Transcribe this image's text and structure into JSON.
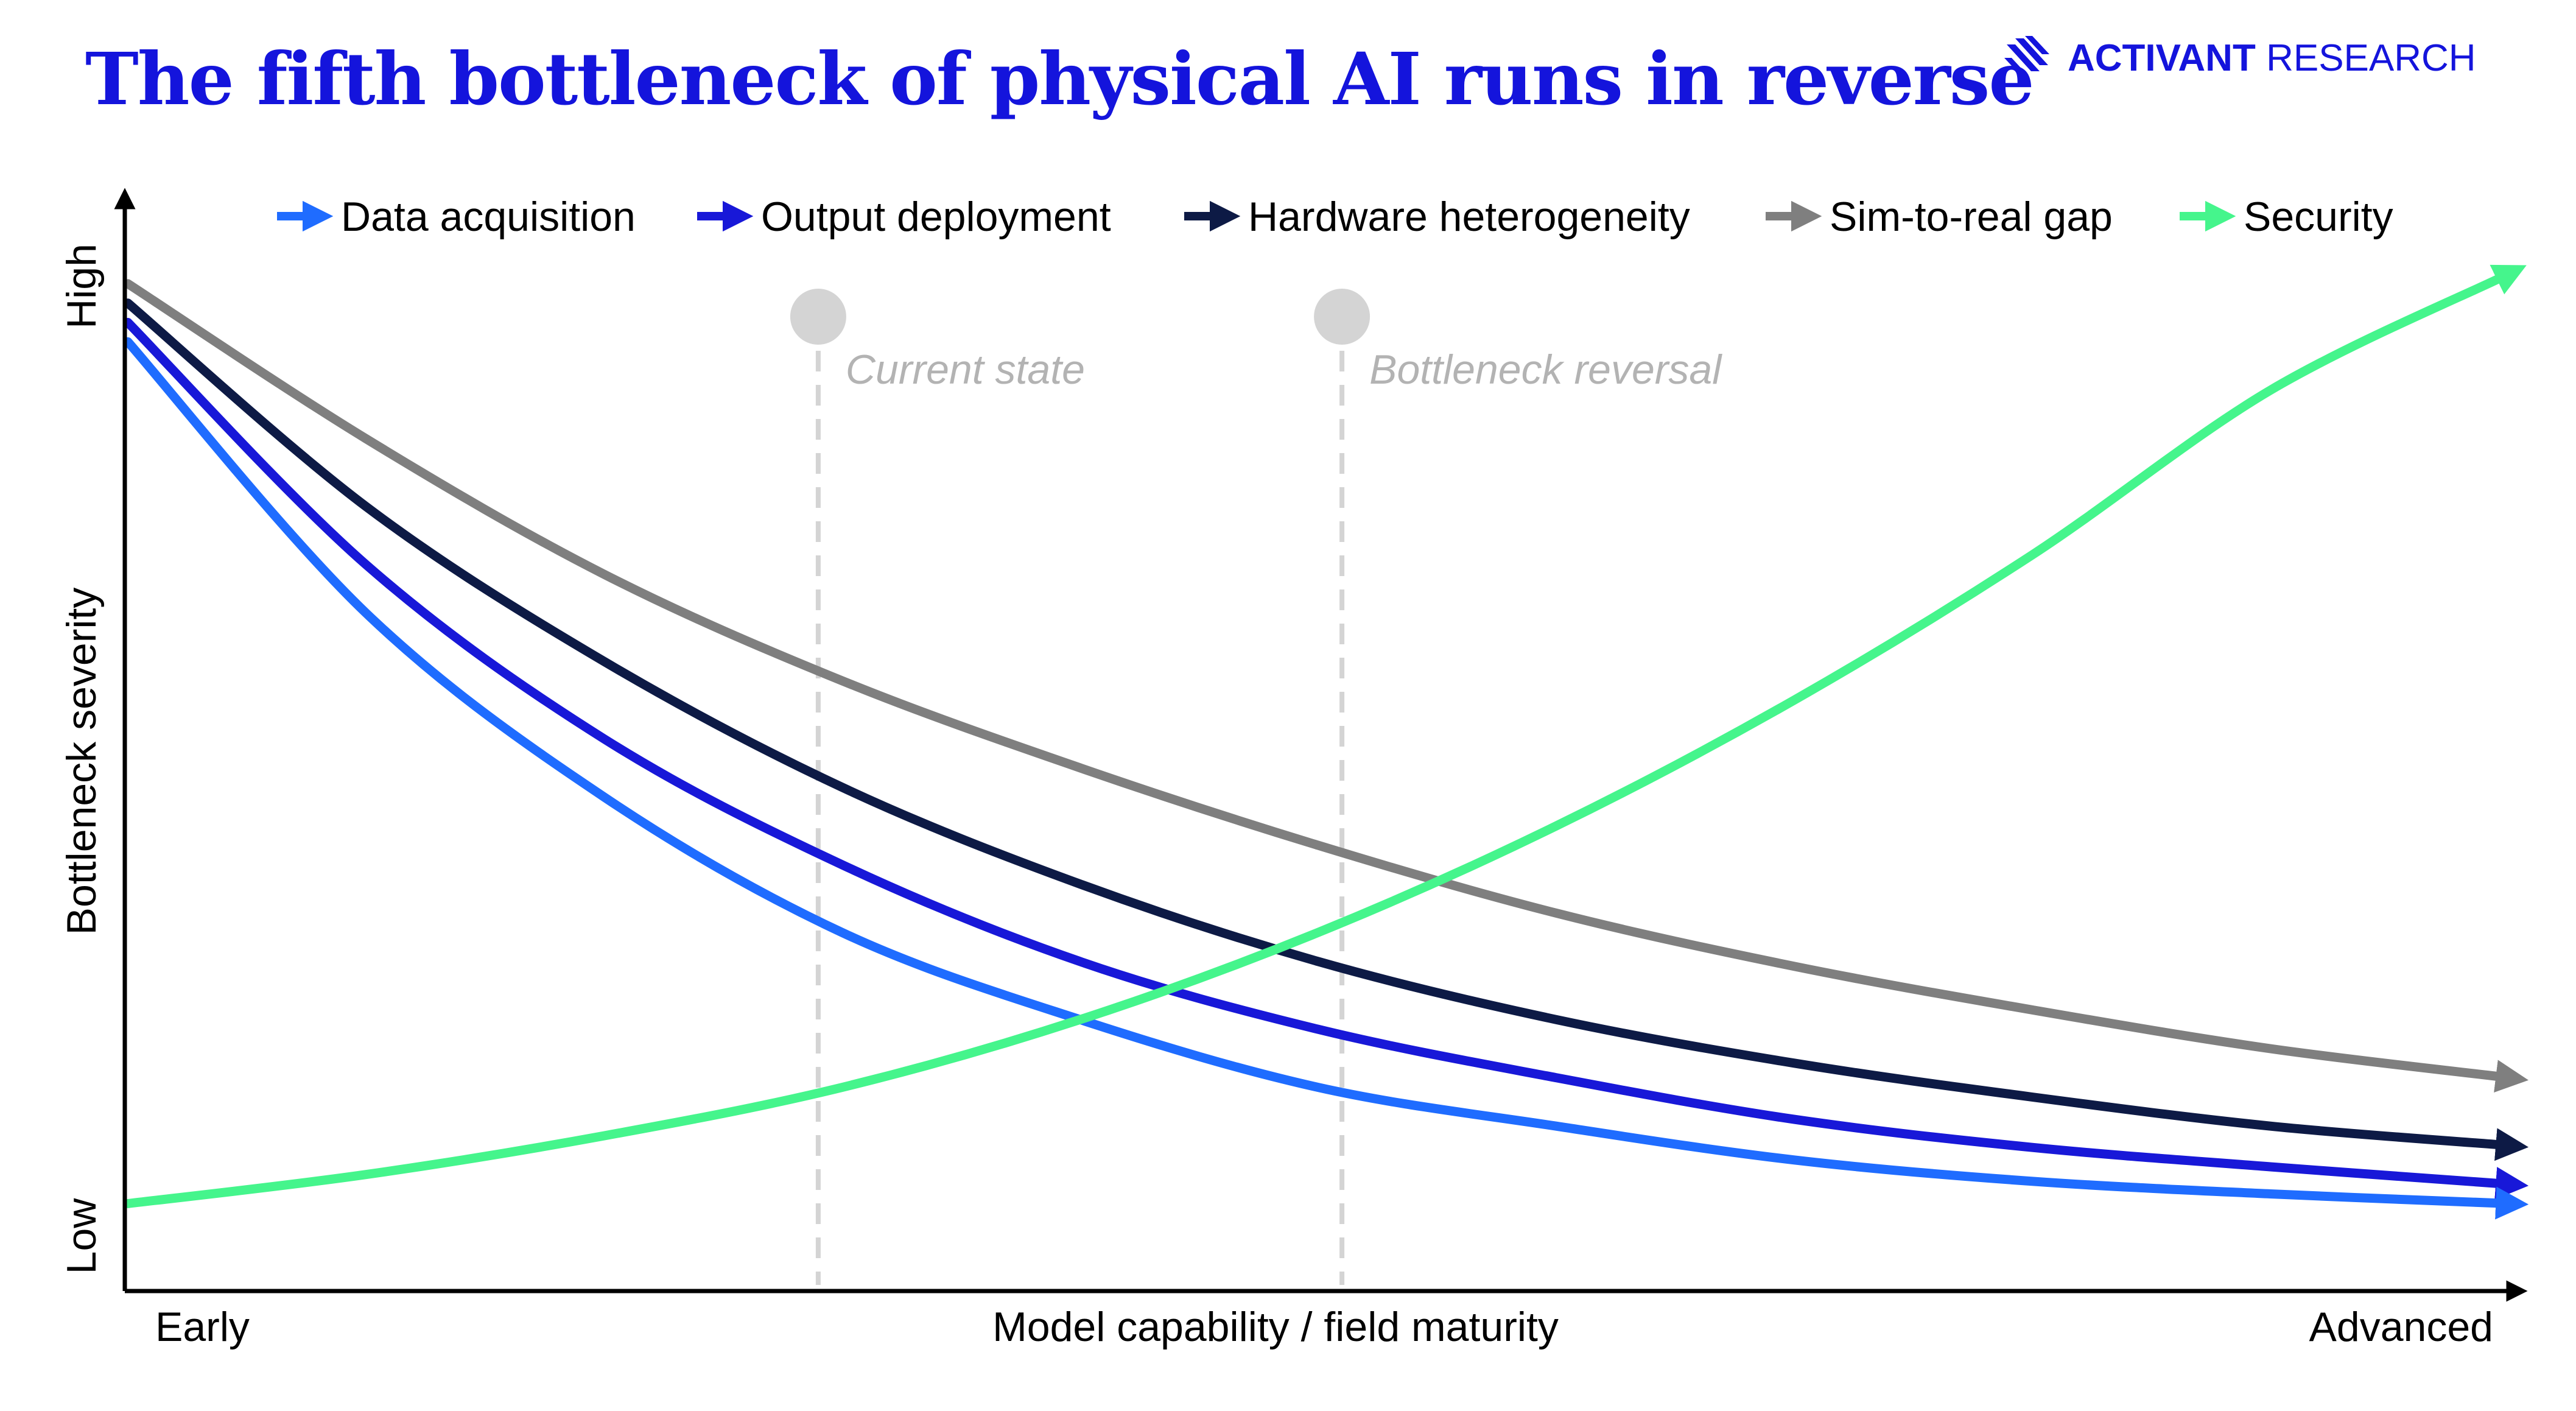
{
  "header": {
    "title": "The fifth bottleneck of physical AI runs in reverse",
    "brand_bold": "ACTIVANT",
    "brand_light": "RESEARCH"
  },
  "colors": {
    "brand": "#1414dc",
    "axis": "#000000",
    "marker": "#d4d4d4",
    "marker_text": "#b3b3b3"
  },
  "chart_data": {
    "type": "line",
    "title": "The fifth bottleneck of physical AI runs in reverse",
    "xlabel": "Model capability / field maturity",
    "ylabel": "Bottleneck severity",
    "x_tick_labels": {
      "start": "Early",
      "end": "Advanced"
    },
    "y_tick_labels": {
      "low": "Low",
      "high": "High"
    },
    "xlim": [
      0,
      100
    ],
    "ylim": [
      0,
      100
    ],
    "grid": false,
    "legend_position": "top",
    "x": [
      0,
      10,
      20,
      30,
      40,
      50,
      60,
      70,
      80,
      90,
      100
    ],
    "series": [
      {
        "name": "Data acquisition",
        "color": "#1f6cff",
        "values": [
          93,
          65,
          46,
          32,
          23,
          16,
          12,
          8.5,
          6.3,
          5,
          4
        ]
      },
      {
        "name": "Output deployment",
        "color": "#1818d8",
        "values": [
          95,
          70,
          52,
          39,
          29,
          22,
          17,
          12.7,
          9.8,
          7.8,
          6
        ]
      },
      {
        "name": "Hardware heterogeneity",
        "color": "#0d1a45",
        "values": [
          97,
          76,
          60,
          47,
          37,
          29,
          23,
          18.5,
          15,
          12,
          10
        ]
      },
      {
        "name": "Sim-to-real gap",
        "color": "#7f7f7f",
        "values": [
          99,
          83,
          69,
          58,
          49,
          41,
          34,
          28.5,
          24,
          20,
          17
        ]
      },
      {
        "name": "Security",
        "color": "#45f58c",
        "values": [
          4,
          7,
          11,
          16,
          23,
          32,
          43,
          56,
          71,
          88,
          100
        ]
      }
    ],
    "annotations": [
      {
        "label": "Current state",
        "x": 29
      },
      {
        "label": "Bottleneck reversal",
        "x": 51
      }
    ]
  }
}
